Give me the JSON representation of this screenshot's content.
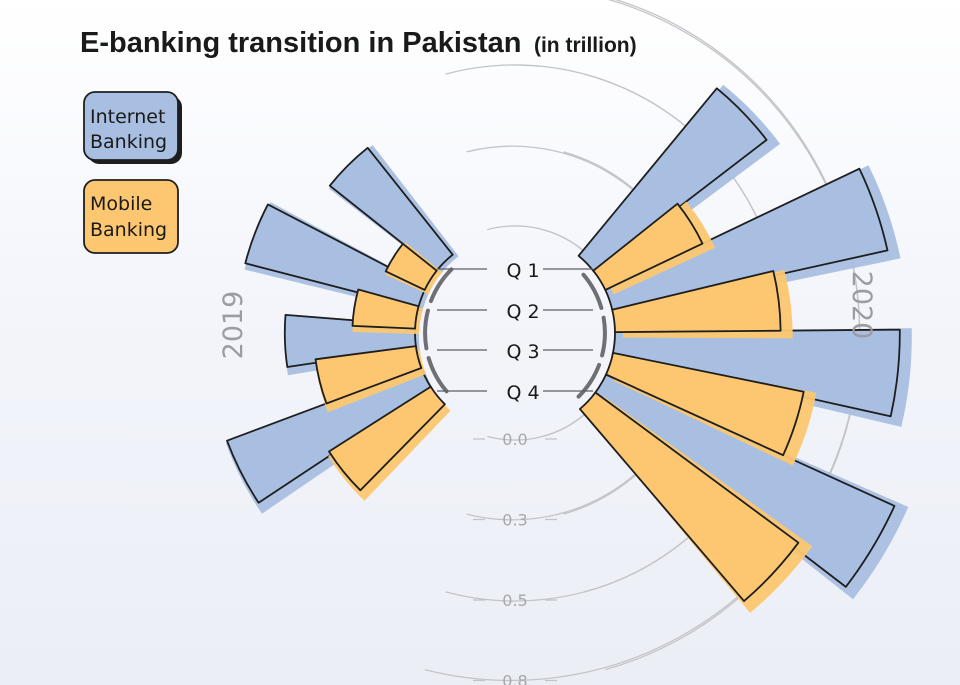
{
  "chart_data": {
    "type": "bar",
    "subtype": "radial",
    "title": "E-banking transition in Pakistan",
    "subtitle": "(in trillion)",
    "categories": [
      "Q 1",
      "Q 2",
      "Q 3",
      "Q 4"
    ],
    "groups": [
      {
        "year": "2019",
        "side": "left",
        "series": [
          {
            "name": "Internet Banking",
            "values": [
              0.44,
              0.57,
              0.42,
              0.66
            ]
          },
          {
            "name": "Mobile Banking",
            "values": [
              0.15,
              0.21,
              0.33,
              0.39
            ]
          }
        ]
      },
      {
        "year": "2020",
        "side": "right",
        "series": [
          {
            "name": "Internet Banking",
            "values": [
              0.69,
              0.89,
              0.9,
              1.0
            ]
          },
          {
            "name": "Mobile Banking",
            "values": [
              0.35,
              0.53,
              0.62,
              0.8
            ]
          }
        ]
      }
    ],
    "radial_ticks": [
      "0.0",
      "0.3",
      "0.5",
      "0.8"
    ],
    "tick_values": [
      0.0,
      0.25,
      0.5,
      0.75
    ],
    "legend": {
      "placement": "top-left",
      "entries": [
        {
          "label_line1": "Internet",
          "label_line2": "Banking",
          "color": "#a9bfe2"
        },
        {
          "label_line1": "Mobile",
          "label_line2": "Banking",
          "color": "#fcc770"
        }
      ]
    },
    "colors": {
      "internet": "#a9bfe2",
      "mobile": "#fcc770",
      "outline": "#1e1e1e",
      "grid": "#c4c4c8"
    }
  }
}
